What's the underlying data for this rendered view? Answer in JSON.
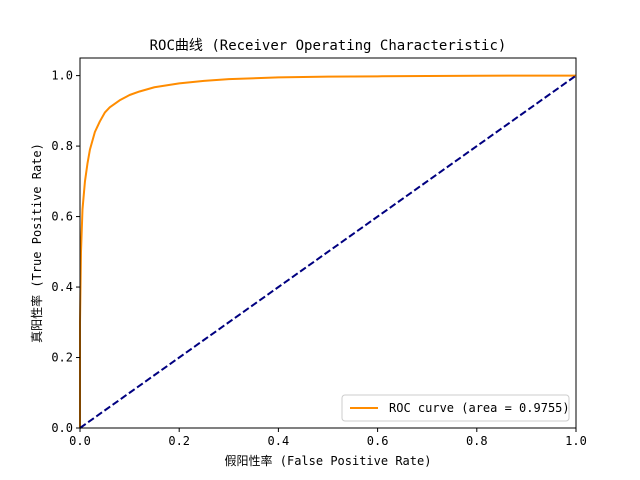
{
  "chart_data": {
    "type": "line",
    "title": "ROC曲线 (Receiver Operating Characteristic)",
    "xlabel": "假阳性率 (False Positive Rate)",
    "ylabel": "真阳性率 (True Positive Rate)",
    "xlim": [
      0.0,
      1.0
    ],
    "ylim": [
      0.0,
      1.05
    ],
    "x_ticks": [
      "0.0",
      "0.2",
      "0.4",
      "0.6",
      "0.8",
      "1.0"
    ],
    "y_ticks": [
      "0.0",
      "0.2",
      "0.4",
      "0.6",
      "0.8",
      "1.0"
    ],
    "grid": false,
    "legend_position": "lower-right",
    "series": [
      {
        "name": "ROC curve (area = 0.9755)",
        "color": "#ff8c00",
        "style": "solid",
        "x": [
          0.0,
          0.0,
          0.002,
          0.005,
          0.01,
          0.015,
          0.02,
          0.03,
          0.04,
          0.05,
          0.06,
          0.07,
          0.08,
          0.1,
          0.12,
          0.15,
          0.2,
          0.25,
          0.3,
          0.4,
          0.5,
          0.6,
          0.7,
          0.8,
          0.9,
          1.0
        ],
        "y": [
          0.0,
          0.3,
          0.5,
          0.62,
          0.7,
          0.75,
          0.79,
          0.84,
          0.87,
          0.895,
          0.91,
          0.92,
          0.93,
          0.945,
          0.955,
          0.967,
          0.978,
          0.985,
          0.99,
          0.995,
          0.997,
          0.998,
          0.999,
          0.9995,
          1.0,
          1.0
        ]
      },
      {
        "color": "#000080",
        "style": "dashed",
        "x": [
          0.0,
          1.0
        ],
        "y": [
          0.0,
          1.0
        ]
      }
    ]
  }
}
